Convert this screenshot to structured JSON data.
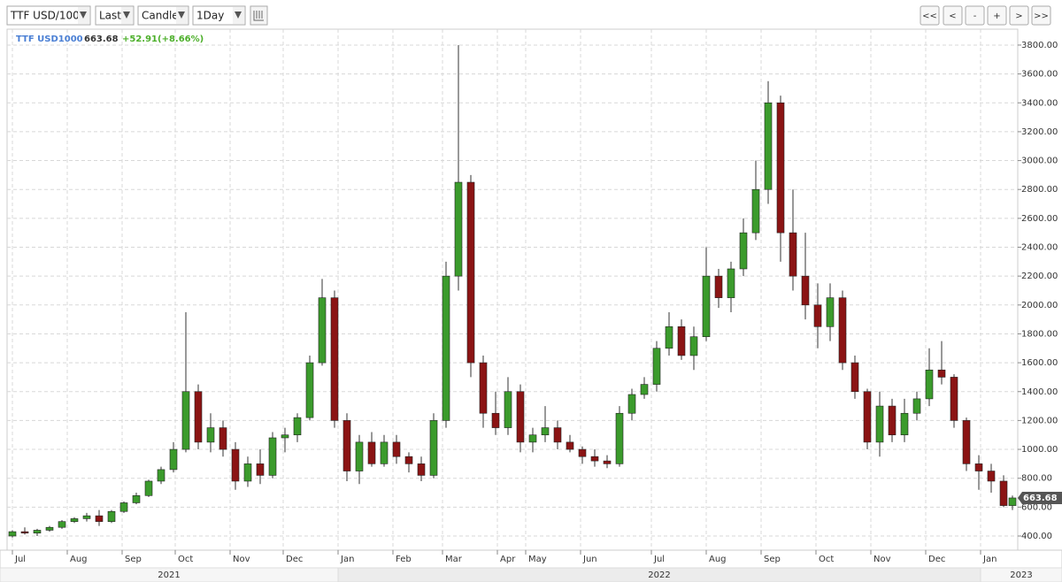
{
  "toolbar": {
    "selects": [
      "TTF USD/100",
      "Last",
      "Candle",
      "1Day"
    ],
    "buttons": [
      "<<",
      "<",
      "-",
      "+",
      ">",
      ">>"
    ]
  },
  "chart_data": {
    "type": "candlestick",
    "name": "TTF USD1000",
    "last": "663.68",
    "change": "+52.91(+8.66%)",
    "up_color": "#3b9b2c",
    "down_color": "#8b1414",
    "grid": true,
    "x": [
      0,
      7,
      14,
      21,
      28,
      35,
      42,
      49,
      56,
      63,
      70,
      77,
      84,
      91,
      98,
      105,
      112,
      119,
      126,
      133,
      140,
      147,
      154,
      161,
      168,
      175,
      182,
      189,
      196,
      203,
      210,
      217,
      224,
      231,
      238,
      245,
      252,
      259,
      266,
      273,
      280,
      287,
      294,
      301,
      308,
      315,
      322,
      329,
      336,
      343,
      350,
      357,
      364,
      371,
      378,
      385,
      392,
      399,
      406,
      413,
      420,
      427,
      434,
      441,
      448,
      455,
      462,
      469,
      476,
      483,
      490,
      497,
      504,
      511,
      518,
      525,
      532,
      539,
      546,
      553,
      560,
      565
    ],
    "open": [
      400,
      430,
      420,
      440,
      460,
      500,
      520,
      540,
      500,
      570,
      630,
      680,
      780,
      860,
      1000,
      1400,
      1050,
      1150,
      1000,
      780,
      900,
      820,
      1080,
      1100,
      1220,
      1600,
      2050,
      1200,
      850,
      1050,
      900,
      1050,
      950,
      900,
      820,
      1200,
      2200,
      2850,
      1600,
      1250,
      1150,
      1400,
      1050,
      1100,
      1150,
      1050,
      1000,
      950,
      920,
      900,
      1250,
      1380,
      1450,
      1700,
      1850,
      1650,
      1780,
      2200,
      2050,
      2250,
      2500,
      2800,
      3400,
      2500,
      2200,
      2000,
      1850,
      2050,
      1600,
      1400,
      1050,
      1300,
      1100,
      1250,
      1350,
      1550,
      1500,
      1200,
      900,
      850,
      780,
      610.77
    ],
    "high": [
      440,
      460,
      450,
      470,
      510,
      530,
      560,
      580,
      580,
      640,
      700,
      790,
      880,
      1050,
      1950,
      1450,
      1250,
      1200,
      1050,
      950,
      1000,
      1120,
      1150,
      1250,
      1650,
      2180,
      2100,
      1250,
      1100,
      1120,
      1100,
      1100,
      980,
      950,
      1250,
      2300,
      3800,
      2900,
      1650,
      1400,
      1500,
      1450,
      1150,
      1300,
      1200,
      1100,
      1020,
      1000,
      960,
      1300,
      1420,
      1500,
      1750,
      1950,
      1900,
      1850,
      2400,
      2250,
      2300,
      2600,
      3000,
      3550,
      3450,
      2800,
      2500,
      2150,
      2150,
      2100,
      1650,
      1420,
      1400,
      1350,
      1350,
      1400,
      1700,
      1750,
      1520,
      1220,
      960,
      900,
      820,
      680
    ],
    "low": [
      390,
      410,
      400,
      430,
      450,
      490,
      500,
      470,
      490,
      560,
      620,
      670,
      760,
      840,
      980,
      1000,
      980,
      950,
      720,
      740,
      760,
      800,
      980,
      1050,
      1200,
      1580,
      1150,
      780,
      760,
      880,
      880,
      900,
      840,
      780,
      800,
      1150,
      2100,
      1500,
      1150,
      1100,
      1100,
      980,
      980,
      1050,
      1000,
      980,
      900,
      880,
      870,
      880,
      1200,
      1350,
      1400,
      1650,
      1620,
      1550,
      1750,
      1980,
      1950,
      2200,
      2450,
      2700,
      2300,
      2100,
      1900,
      1700,
      1750,
      1550,
      1350,
      1000,
      950,
      1050,
      1050,
      1200,
      1300,
      1450,
      1150,
      850,
      720,
      700,
      600,
      580
    ],
    "close": [
      430,
      420,
      440,
      460,
      500,
      520,
      540,
      500,
      570,
      630,
      680,
      780,
      860,
      1000,
      1400,
      1050,
      1150,
      1000,
      780,
      900,
      820,
      1080,
      1100,
      1220,
      1600,
      2050,
      1200,
      850,
      1050,
      900,
      1050,
      950,
      900,
      820,
      1200,
      2200,
      2850,
      1600,
      1250,
      1150,
      1400,
      1050,
      1100,
      1150,
      1050,
      1000,
      950,
      920,
      900,
      1250,
      1380,
      1450,
      1700,
      1850,
      1650,
      1780,
      2200,
      2050,
      2250,
      2500,
      2800,
      3400,
      2500,
      2200,
      2000,
      1850,
      2050,
      1600,
      1400,
      1050,
      1300,
      1100,
      1250,
      1350,
      1550,
      1500,
      1200,
      900,
      850,
      780,
      610.77,
      663.68
    ],
    "xlim": [
      -3,
      568
    ],
    "ylim": [
      302,
      3910
    ],
    "xticks": [
      {
        "value": 0,
        "label": "Jul"
      },
      {
        "value": 31,
        "label": "Aug"
      },
      {
        "value": 62,
        "label": "Sep"
      },
      {
        "value": 92,
        "label": "Oct"
      },
      {
        "value": 123,
        "label": "Nov"
      },
      {
        "value": 153,
        "label": "Dec"
      },
      {
        "value": 184,
        "label": "Jan"
      },
      {
        "value": 215,
        "label": "Feb"
      },
      {
        "value": 243,
        "label": "Mar"
      },
      {
        "value": 274,
        "label": "Apr"
      },
      {
        "value": 290,
        "label": "May"
      },
      {
        "value": 321,
        "label": "Jun"
      },
      {
        "value": 361,
        "label": "Jul"
      },
      {
        "value": 392,
        "label": "Aug"
      },
      {
        "value": 423,
        "label": "Sep"
      },
      {
        "value": 454,
        "label": "Oct"
      },
      {
        "value": 485,
        "label": "Nov"
      },
      {
        "value": 516,
        "label": "Dec"
      },
      {
        "value": 547,
        "label": "Jan"
      }
    ],
    "year_ticks": [
      {
        "value": 0,
        "label": "2021"
      },
      {
        "value": 184,
        "label": "2022"
      },
      {
        "value": 547,
        "label": "2023"
      }
    ],
    "yticks": [
      {
        "value": 400,
        "label": "400.00"
      },
      {
        "value": 600,
        "label": "600.00"
      },
      {
        "value": 800,
        "label": "800.00"
      },
      {
        "value": 1000,
        "label": "1000.00"
      },
      {
        "value": 1200,
        "label": "1200.00"
      },
      {
        "value": 1400,
        "label": "1400.00"
      },
      {
        "value": 1600,
        "label": "1600.00"
      },
      {
        "value": 1800,
        "label": "1800.00"
      },
      {
        "value": 2000,
        "label": "2000.00"
      },
      {
        "value": 2200,
        "label": "2200.00"
      },
      {
        "value": 2400,
        "label": "2400.00"
      },
      {
        "value": 2600,
        "label": "2600.00"
      },
      {
        "value": 2800,
        "label": "2800.00"
      },
      {
        "value": 3000,
        "label": "3000.00"
      },
      {
        "value": 3200,
        "label": "3200.00"
      },
      {
        "value": 3400,
        "label": "3400.00"
      },
      {
        "value": 3600,
        "label": "3600.00"
      },
      {
        "value": 3800,
        "label": "3800.00"
      }
    ]
  }
}
